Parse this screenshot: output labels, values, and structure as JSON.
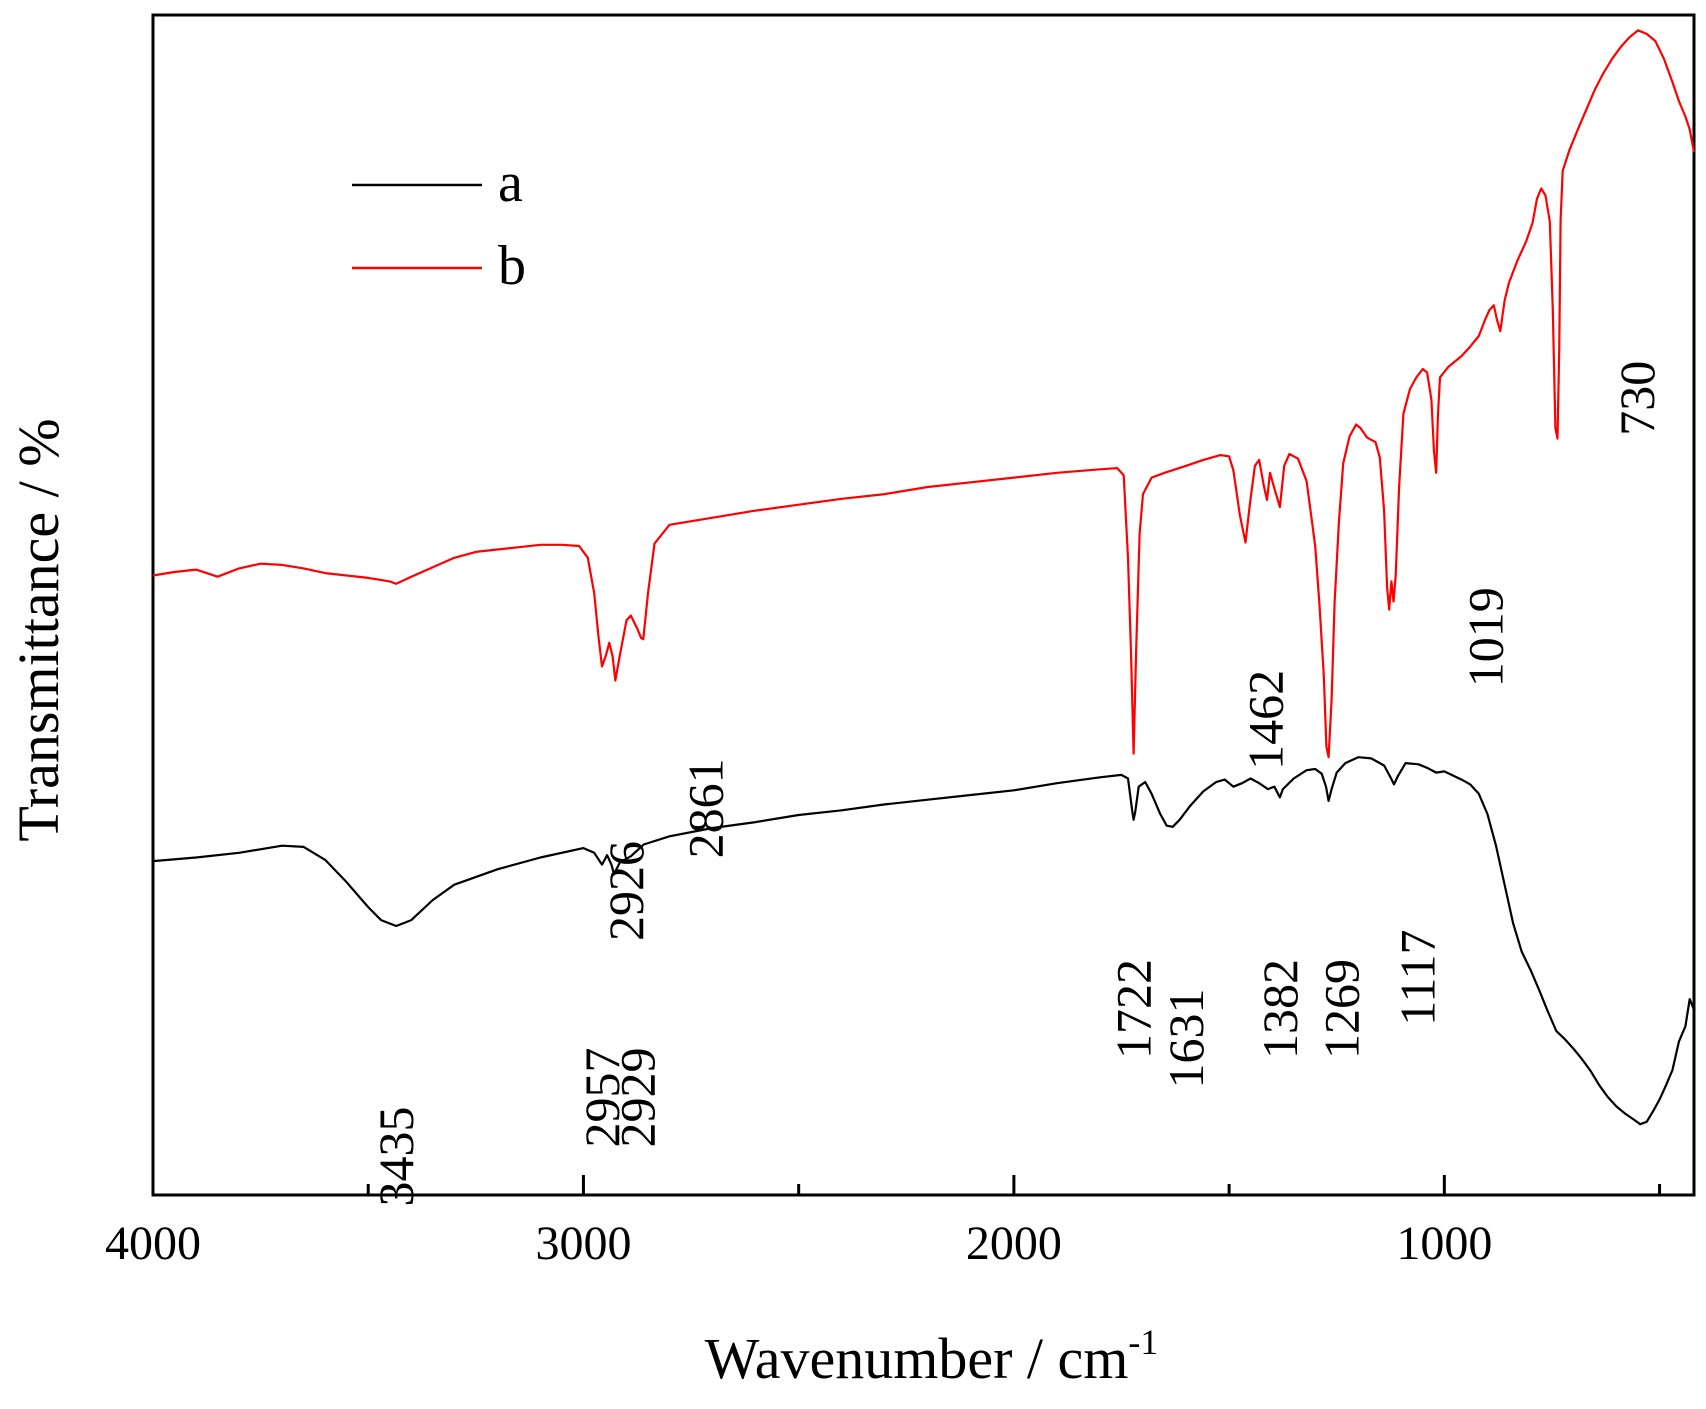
{
  "chart_data": {
    "type": "line",
    "title": "",
    "xlabel": "Wavenumber / cm",
    "xlabel_sup": "-1",
    "ylabel": "Transmittance / %",
    "xlim": [
      4000,
      420
    ],
    "ylim": [
      0,
      100
    ],
    "x_ticks": [
      4000,
      3000,
      2000,
      1000
    ],
    "x_tick_labels": [
      "4000",
      "3000",
      "2000",
      "1000"
    ],
    "legend": [
      {
        "label": "a",
        "color": "#000000"
      },
      {
        "label": "b",
        "color": "#ff0000"
      }
    ],
    "series": [
      {
        "name": "a",
        "color": "#000000",
        "points": [
          [
            4000,
            28.3
          ],
          [
            3900,
            28.6
          ],
          [
            3800,
            29.0
          ],
          [
            3700,
            29.6
          ],
          [
            3650,
            29.5
          ],
          [
            3600,
            28.4
          ],
          [
            3550,
            26.5
          ],
          [
            3500,
            24.4
          ],
          [
            3470,
            23.3
          ],
          [
            3435,
            22.8
          ],
          [
            3400,
            23.3
          ],
          [
            3350,
            25.0
          ],
          [
            3300,
            26.3
          ],
          [
            3200,
            27.6
          ],
          [
            3100,
            28.6
          ],
          [
            3000,
            29.4
          ],
          [
            2975,
            29.0
          ],
          [
            2957,
            28.0
          ],
          [
            2945,
            28.8
          ],
          [
            2935,
            28.0
          ],
          [
            2929,
            27.2
          ],
          [
            2915,
            28.2
          ],
          [
            2890,
            28.7
          ],
          [
            2860,
            29.7
          ],
          [
            2800,
            30.4
          ],
          [
            2700,
            31.1
          ],
          [
            2600,
            31.6
          ],
          [
            2500,
            32.2
          ],
          [
            2400,
            32.6
          ],
          [
            2300,
            33.1
          ],
          [
            2200,
            33.5
          ],
          [
            2100,
            33.9
          ],
          [
            2000,
            34.3
          ],
          [
            1900,
            34.9
          ],
          [
            1800,
            35.4
          ],
          [
            1750,
            35.6
          ],
          [
            1735,
            35.3
          ],
          [
            1725,
            32.5
          ],
          [
            1722,
            31.8
          ],
          [
            1718,
            32.5
          ],
          [
            1710,
            34.6
          ],
          [
            1695,
            35.0
          ],
          [
            1680,
            34.0
          ],
          [
            1660,
            32.3
          ],
          [
            1645,
            31.3
          ],
          [
            1631,
            31.2
          ],
          [
            1615,
            31.8
          ],
          [
            1590,
            33.0
          ],
          [
            1560,
            34.2
          ],
          [
            1530,
            35.0
          ],
          [
            1510,
            35.2
          ],
          [
            1490,
            34.6
          ],
          [
            1470,
            34.9
          ],
          [
            1450,
            35.3
          ],
          [
            1430,
            34.9
          ],
          [
            1410,
            34.4
          ],
          [
            1395,
            34.6
          ],
          [
            1382,
            33.7
          ],
          [
            1375,
            34.4
          ],
          [
            1350,
            35.3
          ],
          [
            1320,
            36.0
          ],
          [
            1300,
            36.1
          ],
          [
            1285,
            35.7
          ],
          [
            1275,
            34.6
          ],
          [
            1269,
            33.4
          ],
          [
            1262,
            34.4
          ],
          [
            1250,
            35.8
          ],
          [
            1230,
            36.6
          ],
          [
            1200,
            37.1
          ],
          [
            1170,
            37.0
          ],
          [
            1140,
            36.4
          ],
          [
            1125,
            35.4
          ],
          [
            1117,
            34.8
          ],
          [
            1108,
            35.5
          ],
          [
            1090,
            36.6
          ],
          [
            1060,
            36.5
          ],
          [
            1040,
            36.2
          ],
          [
            1019,
            35.8
          ],
          [
            1000,
            35.9
          ],
          [
            960,
            35.2
          ],
          [
            940,
            34.8
          ],
          [
            920,
            34.0
          ],
          [
            900,
            32.3
          ],
          [
            880,
            29.6
          ],
          [
            860,
            26.3
          ],
          [
            840,
            23.0
          ],
          [
            820,
            20.6
          ],
          [
            800,
            19.1
          ],
          [
            780,
            17.4
          ],
          [
            760,
            15.6
          ],
          [
            740,
            13.9
          ],
          [
            720,
            13.2
          ],
          [
            700,
            12.4
          ],
          [
            680,
            11.5
          ],
          [
            660,
            10.5
          ],
          [
            640,
            9.3
          ],
          [
            620,
            8.3
          ],
          [
            600,
            7.5
          ],
          [
            580,
            6.9
          ],
          [
            560,
            6.4
          ],
          [
            545,
            6.0
          ],
          [
            530,
            6.2
          ],
          [
            515,
            7.1
          ],
          [
            500,
            8.1
          ],
          [
            485,
            9.3
          ],
          [
            470,
            10.6
          ],
          [
            455,
            13.0
          ],
          [
            440,
            14.3
          ],
          [
            430,
            16.6
          ],
          [
            420,
            15.7
          ]
        ]
      },
      {
        "name": "b",
        "color": "#ff0000",
        "points": [
          [
            4000,
            52.5
          ],
          [
            3950,
            52.8
          ],
          [
            3900,
            53.0
          ],
          [
            3850,
            52.4
          ],
          [
            3800,
            53.1
          ],
          [
            3750,
            53.5
          ],
          [
            3700,
            53.4
          ],
          [
            3650,
            53.1
          ],
          [
            3600,
            52.7
          ],
          [
            3550,
            52.5
          ],
          [
            3500,
            52.3
          ],
          [
            3450,
            52.0
          ],
          [
            3435,
            51.8
          ],
          [
            3400,
            52.4
          ],
          [
            3350,
            53.2
          ],
          [
            3300,
            54.0
          ],
          [
            3250,
            54.5
          ],
          [
            3200,
            54.7
          ],
          [
            3150,
            54.9
          ],
          [
            3100,
            55.1
          ],
          [
            3050,
            55.1
          ],
          [
            3010,
            55.0
          ],
          [
            2990,
            54.0
          ],
          [
            2975,
            51.0
          ],
          [
            2965,
            47.3
          ],
          [
            2957,
            44.8
          ],
          [
            2948,
            45.7
          ],
          [
            2940,
            46.8
          ],
          [
            2932,
            45.6
          ],
          [
            2926,
            43.6
          ],
          [
            2915,
            45.8
          ],
          [
            2900,
            48.7
          ],
          [
            2890,
            49.1
          ],
          [
            2875,
            48.0
          ],
          [
            2866,
            47.2
          ],
          [
            2861,
            47.1
          ],
          [
            2850,
            51.0
          ],
          [
            2835,
            55.2
          ],
          [
            2800,
            56.8
          ],
          [
            2700,
            57.4
          ],
          [
            2600,
            58.0
          ],
          [
            2500,
            58.5
          ],
          [
            2400,
            59.0
          ],
          [
            2300,
            59.4
          ],
          [
            2200,
            60.0
          ],
          [
            2100,
            60.4
          ],
          [
            2000,
            60.8
          ],
          [
            1900,
            61.2
          ],
          [
            1800,
            61.5
          ],
          [
            1760,
            61.6
          ],
          [
            1745,
            61.0
          ],
          [
            1735,
            54.0
          ],
          [
            1728,
            46.0
          ],
          [
            1722,
            37.4
          ],
          [
            1716,
            46.0
          ],
          [
            1708,
            56.0
          ],
          [
            1700,
            59.4
          ],
          [
            1680,
            60.8
          ],
          [
            1650,
            61.2
          ],
          [
            1600,
            61.8
          ],
          [
            1560,
            62.3
          ],
          [
            1520,
            62.7
          ],
          [
            1500,
            62.6
          ],
          [
            1490,
            61.4
          ],
          [
            1475,
            57.6
          ],
          [
            1462,
            55.3
          ],
          [
            1452,
            58.5
          ],
          [
            1440,
            61.8
          ],
          [
            1430,
            62.3
          ],
          [
            1420,
            60.2
          ],
          [
            1412,
            58.9
          ],
          [
            1405,
            61.2
          ],
          [
            1395,
            59.9
          ],
          [
            1382,
            58.3
          ],
          [
            1372,
            61.8
          ],
          [
            1360,
            62.8
          ],
          [
            1340,
            62.4
          ],
          [
            1320,
            60.5
          ],
          [
            1300,
            55.0
          ],
          [
            1290,
            50.0
          ],
          [
            1280,
            44.0
          ],
          [
            1274,
            38.0
          ],
          [
            1269,
            37.1
          ],
          [
            1262,
            42.0
          ],
          [
            1255,
            50.2
          ],
          [
            1245,
            57.0
          ],
          [
            1235,
            62.0
          ],
          [
            1220,
            64.3
          ],
          [
            1205,
            65.3
          ],
          [
            1195,
            65.0
          ],
          [
            1180,
            64.2
          ],
          [
            1160,
            63.8
          ],
          [
            1150,
            62.5
          ],
          [
            1140,
            58.0
          ],
          [
            1133,
            51.5
          ],
          [
            1128,
            49.6
          ],
          [
            1123,
            52.0
          ],
          [
            1118,
            50.3
          ],
          [
            1113,
            52.5
          ],
          [
            1105,
            60.0
          ],
          [
            1095,
            66.2
          ],
          [
            1080,
            68.3
          ],
          [
            1065,
            69.3
          ],
          [
            1050,
            70.0
          ],
          [
            1040,
            69.7
          ],
          [
            1030,
            67.4
          ],
          [
            1024,
            63.0
          ],
          [
            1019,
            61.2
          ],
          [
            1015,
            66.0
          ],
          [
            1010,
            69.3
          ],
          [
            990,
            70.2
          ],
          [
            960,
            71.1
          ],
          [
            940,
            71.9
          ],
          [
            920,
            72.8
          ],
          [
            905,
            74.2
          ],
          [
            895,
            75.0
          ],
          [
            885,
            75.4
          ],
          [
            878,
            74.2
          ],
          [
            870,
            73.2
          ],
          [
            860,
            75.8
          ],
          [
            850,
            77.3
          ],
          [
            830,
            79.2
          ],
          [
            810,
            80.8
          ],
          [
            795,
            82.4
          ],
          [
            785,
            84.4
          ],
          [
            775,
            85.3
          ],
          [
            765,
            84.7
          ],
          [
            755,
            82.5
          ],
          [
            748,
            75.0
          ],
          [
            742,
            65.0
          ],
          [
            737,
            64.1
          ],
          [
            733,
            72.0
          ],
          [
            730,
            82.6
          ],
          [
            725,
            86.8
          ],
          [
            710,
            88.5
          ],
          [
            690,
            90.3
          ],
          [
            670,
            92.0
          ],
          [
            650,
            93.7
          ],
          [
            630,
            95.1
          ],
          [
            610,
            96.3
          ],
          [
            590,
            97.3
          ],
          [
            570,
            98.1
          ],
          [
            550,
            98.7
          ],
          [
            530,
            98.4
          ],
          [
            510,
            97.8
          ],
          [
            490,
            96.3
          ],
          [
            470,
            94.3
          ],
          [
            455,
            92.7
          ],
          [
            440,
            91.4
          ],
          [
            430,
            90.3
          ],
          [
            420,
            88.4
          ]
        ]
      }
    ],
    "annotations": [
      {
        "text": "3435",
        "x": 3435,
        "y": 7.5,
        "series": "a"
      },
      {
        "text": "2957",
        "x": 2957,
        "y": 12.5,
        "series": "a"
      },
      {
        "text": "2929",
        "x": 2875,
        "y": 12.5,
        "series": "a"
      },
      {
        "text": "1722",
        "x": 1722,
        "y": 20.0,
        "series": "a"
      },
      {
        "text": "1631",
        "x": 1600,
        "y": 17.5,
        "series": "a"
      },
      {
        "text": "1382",
        "x": 1382,
        "y": 20.0,
        "series": "a"
      },
      {
        "text": "1269",
        "x": 1239,
        "y": 20.0,
        "series": "a"
      },
      {
        "text": "1117",
        "x": 1062,
        "y": 22.5,
        "series": "a"
      },
      {
        "text": "2926",
        "x": 2901,
        "y": 30.0,
        "series": "b"
      },
      {
        "text": "2861",
        "x": 2716,
        "y": 37.0,
        "series": "b"
      },
      {
        "text": "1462",
        "x": 1415,
        "y": 44.5,
        "series": "b"
      },
      {
        "text": "1019",
        "x": 904,
        "y": 51.5,
        "series": "b"
      },
      {
        "text": "730",
        "x": 552,
        "y": 70.7,
        "series": "b"
      }
    ]
  }
}
